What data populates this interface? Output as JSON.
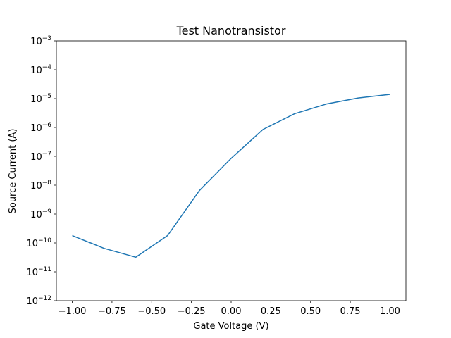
{
  "chart_data": {
    "type": "line",
    "title": "Test Nanotransistor",
    "xlabel": "Gate Voltage (V)",
    "ylabel": "Source Current (A)",
    "xlim": [
      -1.1,
      1.1
    ],
    "ylim": [
      1e-12,
      0.001
    ],
    "yscale": "log",
    "grid": false,
    "line_color": "#1f77b4",
    "x_ticks": [
      -1.0,
      -0.75,
      -0.5,
      -0.25,
      0.0,
      0.25,
      0.5,
      0.75,
      1.0
    ],
    "x_tick_labels": [
      "−1.00",
      "−0.75",
      "−0.50",
      "−0.25",
      "0.00",
      "0.25",
      "0.50",
      "0.75",
      "1.00"
    ],
    "y_tick_exponents": [
      -12,
      -11,
      -10,
      -9,
      -8,
      -7,
      -6,
      -5,
      -4,
      -3
    ],
    "y_tick_base": "10",
    "series": [
      {
        "x": [
          -1.0,
          -0.8,
          -0.6,
          -0.4,
          -0.2,
          0.0,
          0.2,
          0.4,
          0.6,
          0.8,
          1.0
        ],
        "y": [
          1.8e-10,
          6.5e-11,
          3.2e-11,
          1.8e-10,
          6.5e-09,
          8.5e-08,
          8.5e-07,
          3e-06,
          6.5e-06,
          1.05e-05,
          1.4e-05
        ]
      }
    ]
  }
}
